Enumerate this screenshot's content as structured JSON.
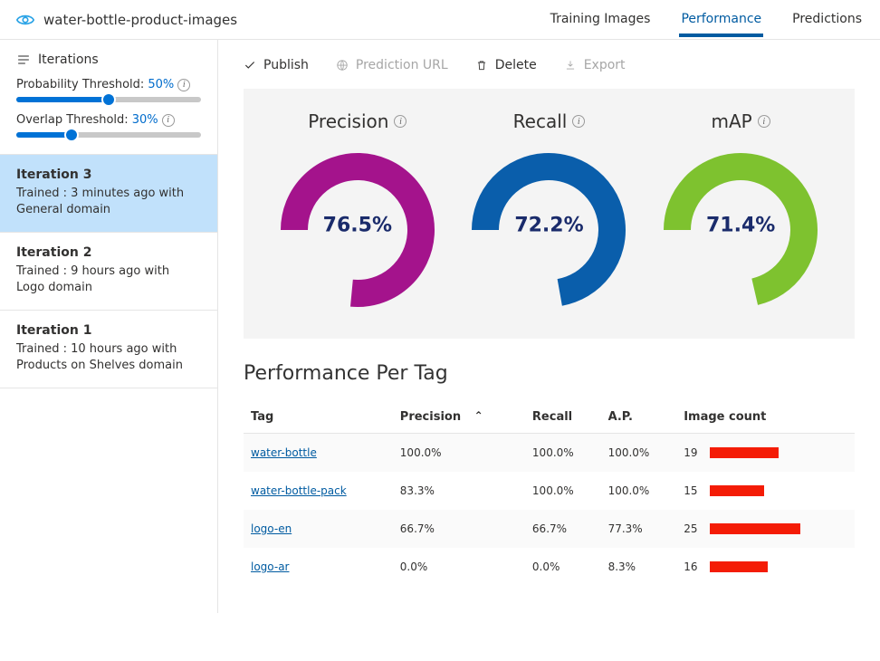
{
  "project_title": "water-bottle-product-images",
  "top_tabs": {
    "training": "Training Images",
    "performance": "Performance",
    "predictions": "Predictions",
    "active": "performance"
  },
  "sidebar": {
    "iterations_label": "Iterations",
    "probability": {
      "label": "Probability Threshold:",
      "display": "50%",
      "pct": 50
    },
    "overlap": {
      "label": "Overlap Threshold:",
      "display": "30%",
      "pct": 30
    },
    "iterations": [
      {
        "title": "Iteration 3",
        "sub": "Trained : 3 minutes ago with General domain",
        "active": true
      },
      {
        "title": "Iteration 2",
        "sub": "Trained : 9 hours ago with Logo domain",
        "active": false
      },
      {
        "title": "Iteration 1",
        "sub": "Trained : 10 hours ago with Products on Shelves domain",
        "active": false
      }
    ]
  },
  "toolbar": {
    "publish": "Publish",
    "prediction_url": "Prediction URL",
    "delete": "Delete",
    "export": "Export"
  },
  "metrics": {
    "precision": {
      "label": "Precision",
      "value": "76.5%",
      "pct": 76.5,
      "color": "#a4138c",
      "track": "#f4f4f4"
    },
    "recall": {
      "label": "Recall",
      "value": "72.2%",
      "pct": 72.2,
      "color": "#0a5eab",
      "track": "#f4f4f4"
    },
    "map": {
      "label": "mAP",
      "value": "71.4%",
      "pct": 71.4,
      "color": "#7ec22f",
      "track": "#f4f4f4"
    },
    "value_color": "#1a2b6b",
    "donut": {
      "radius": 70,
      "thickness": 30,
      "start_deg": 180,
      "gap_deg": 4
    }
  },
  "pp_title": "Performance Per Tag",
  "table": {
    "headers": {
      "tag": "Tag",
      "precision": "Precision",
      "recall": "Recall",
      "ap": "A.P.",
      "image_count": "Image count"
    },
    "sort_col": "precision",
    "bar_color": "#f41c06",
    "bar_max": 25,
    "rows": [
      {
        "tag": "water-bottle",
        "precision": "100.0%",
        "recall": "100.0%",
        "ap": "100.0%",
        "count": "19",
        "count_n": 19
      },
      {
        "tag": "water-bottle-pack",
        "precision": "83.3%",
        "recall": "100.0%",
        "ap": "100.0%",
        "count": "15",
        "count_n": 15
      },
      {
        "tag": "logo-en",
        "precision": "66.7%",
        "recall": "66.7%",
        "ap": "77.3%",
        "count": "25",
        "count_n": 25
      },
      {
        "tag": "logo-ar",
        "precision": "0.0%",
        "recall": "0.0%",
        "ap": "8.3%",
        "count": "16",
        "count_n": 16
      }
    ]
  },
  "colors": {
    "accent": "#005ba1",
    "slider": "#0072d6"
  }
}
